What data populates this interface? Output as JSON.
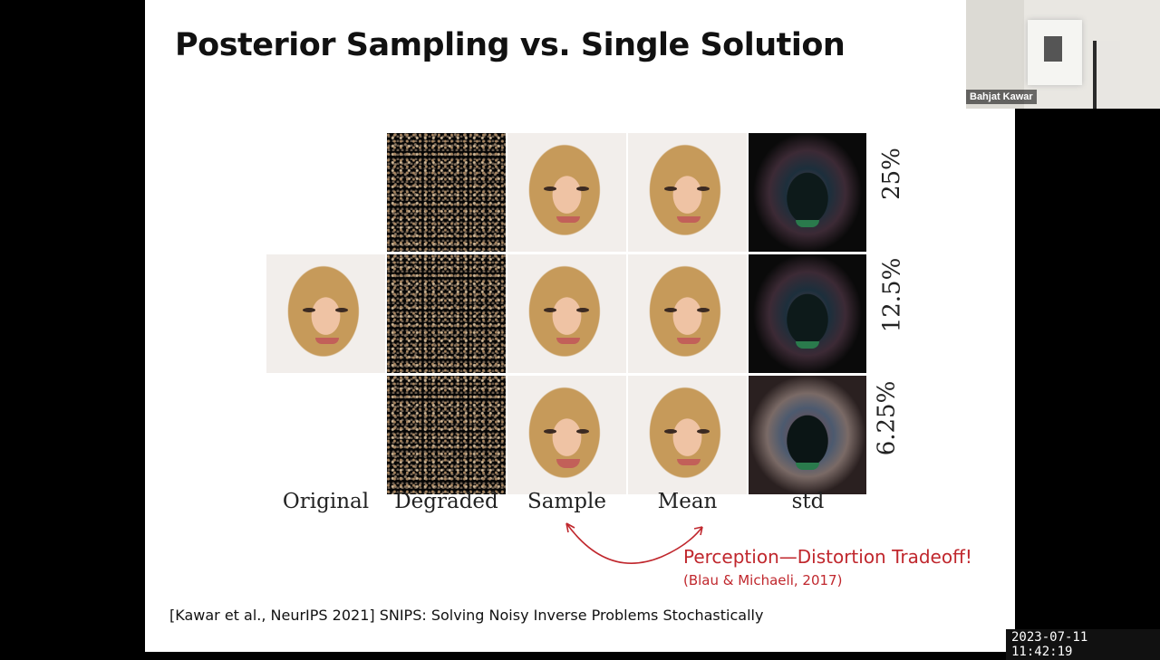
{
  "slide": {
    "title": "Posterior Sampling vs. Single Solution",
    "row_labels": [
      "25%",
      "12.5%",
      "6.25%"
    ],
    "col_labels": [
      "Original",
      "Degraded",
      "Sample",
      "Mean",
      "std"
    ],
    "tradeoff_text": "Perception—Distortion Tradeoff!",
    "tradeoff_citation": "(Blau & Michaeli, 2017)",
    "reference": "[Kawar et al., NeurIPS 2021] SNIPS: Solving Noisy Inverse Problems Stochastically",
    "colors": {
      "accent_red": "#c0272d"
    }
  },
  "webcam": {
    "name": "Bahjat Kawar"
  },
  "timestamp": "2023-07-11  11:42:19"
}
